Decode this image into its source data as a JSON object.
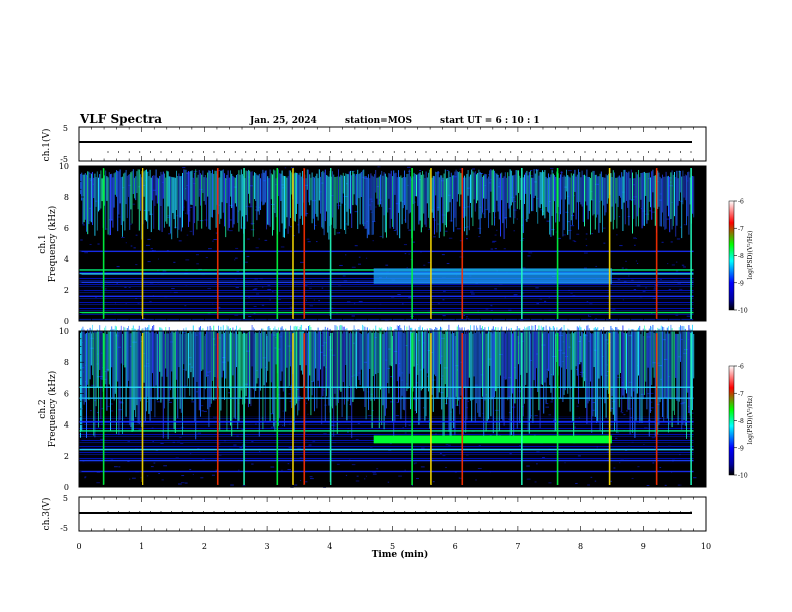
{
  "header": {
    "title": "VLF Spectra",
    "date": "Jan. 25, 2024",
    "station": "station=MOS",
    "start": "start UT =  6 : 10 : 1"
  },
  "panels": {
    "ch1v": {
      "ylabel": "ch.1(V)",
      "ticks": [
        "5",
        "-5"
      ]
    },
    "ch1": {
      "ylabel_a": "ch.1",
      "ylabel_b": "Frequency (kHz)",
      "ticks": [
        "0",
        "2",
        "4",
        "6",
        "8",
        "10"
      ]
    },
    "ch2": {
      "ylabel_a": "ch.2",
      "ylabel_b": "Frequency (kHz)",
      "ticks": [
        "0",
        "2",
        "4",
        "6",
        "8",
        "10"
      ]
    },
    "ch3v": {
      "ylabel": "ch.3(V)",
      "ticks": [
        "5",
        "-5"
      ]
    }
  },
  "colorbar": {
    "label": "log(PSD)(V²/Hz)",
    "ticks": [
      "-6",
      "-7",
      "-8",
      "-9",
      "-10"
    ]
  },
  "xaxis": {
    "label": "Time (min)",
    "ticks": [
      "0",
      "1",
      "2",
      "3",
      "4",
      "5",
      "6",
      "7",
      "8",
      "9",
      "10"
    ]
  },
  "chart_data": [
    {
      "type": "line",
      "title": "VLF Spectra",
      "ylabel": "ch.1(V)",
      "xlabel": "Time (min)",
      "xlim": [
        0,
        10
      ],
      "ylim": [
        -5,
        5
      ],
      "series": [
        {
          "x": [
            0,
            9.8
          ],
          "y": [
            0,
            0
          ]
        }
      ]
    },
    {
      "type": "heatmap",
      "ylabel": "Frequency (kHz)",
      "xlabel": "Time (min)",
      "xlim": [
        0,
        10
      ],
      "ylim": [
        0,
        10
      ],
      "colorbar": {
        "label": "log(PSD)(V²/Hz)",
        "range": [
          -10,
          -6
        ]
      },
      "spike_times_min": [
        0.38,
        1.0,
        2.2,
        2.62,
        3.15,
        3.4,
        3.58,
        4.0,
        5.3,
        5.6,
        6.1,
        7.05,
        7.62,
        8.45,
        9.2,
        9.75
      ],
      "noise_band_khz": [
        0.4,
        3.2
      ],
      "whistler_band_khz": [
        5.5,
        9.2
      ]
    },
    {
      "type": "heatmap",
      "ylabel": "Frequency (kHz)",
      "xlabel": "Time (min)",
      "xlim": [
        0,
        10
      ],
      "ylim": [
        0,
        10
      ],
      "colorbar": {
        "label": "log(PSD)(V²/Hz)",
        "range": [
          -10,
          -6
        ]
      },
      "spike_times_min": [
        0.38,
        1.0,
        2.2,
        2.62,
        3.15,
        3.4,
        3.58,
        4.0,
        5.3,
        5.6,
        6.1,
        7.05,
        7.62,
        8.45,
        9.2,
        9.75
      ],
      "noise_band_khz": [
        1.5,
        4.5
      ],
      "whistler_band_khz": [
        3.5,
        9.8
      ],
      "bright_band": {
        "freq_khz": [
          2.8,
          3.3
        ],
        "time_min": [
          4.7,
          8.5
        ]
      }
    },
    {
      "type": "line",
      "ylabel": "ch.3(V)",
      "xlabel": "Time (min)",
      "xlim": [
        0,
        10
      ],
      "ylim": [
        -5,
        5
      ],
      "series": [
        {
          "x": [
            0,
            9.8
          ],
          "y": [
            0,
            0
          ]
        }
      ]
    }
  ]
}
